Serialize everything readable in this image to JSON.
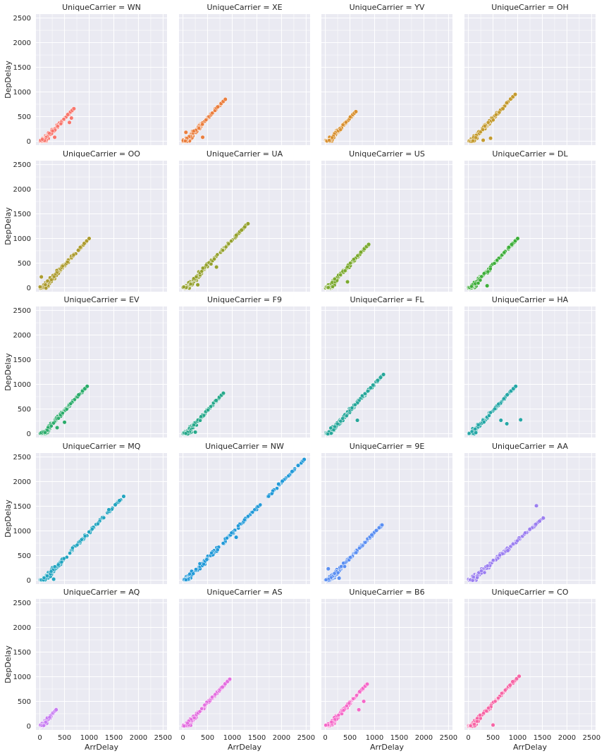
{
  "chart_data": {
    "type": "scatter",
    "x_label": "ArrDelay",
    "y_label": "DepDelay",
    "xlim": [
      -80,
      2580
    ],
    "ylim": [
      -80,
      2580
    ],
    "x_ticks": [
      0,
      500,
      1000,
      1500,
      2000,
      2500
    ],
    "y_ticks": [
      0,
      500,
      1000,
      1500,
      2000,
      2500
    ],
    "grid": true,
    "legend": "none",
    "facets": [
      {
        "title": "UniqueCarrier = WN",
        "color": "#f8766d",
        "max": [
          690,
          660
        ],
        "outliers": [
          [
            300,
            80
          ],
          [
            600,
            380
          ],
          [
            640,
            470
          ]
        ]
      },
      {
        "title": "UniqueCarrier = XE",
        "color": "#ea7e3e",
        "max": [
          860,
          850
        ],
        "outliers": [
          [
            60,
            180
          ],
          [
            400,
            80
          ]
        ]
      },
      {
        "title": "UniqueCarrier = YV",
        "color": "#d89030",
        "max": [
          620,
          600
        ],
        "outliers": []
      },
      {
        "title": "UniqueCarrier = OH",
        "color": "#c39a2f",
        "max": [
          950,
          950
        ],
        "outliers": [
          [
            700,
            660
          ],
          [
            300,
            20
          ],
          [
            450,
            60
          ]
        ]
      },
      {
        "title": "UniqueCarrier = OO",
        "color": "#ac9b2f",
        "max": [
          1000,
          1000
        ],
        "outliers": [
          [
            30,
            220
          ],
          [
            780,
            760
          ]
        ]
      },
      {
        "title": "UniqueCarrier = UA",
        "color": "#94a12f",
        "max": [
          1320,
          1300
        ],
        "outliers": [
          [
            680,
            420
          ],
          [
            300,
            60
          ]
        ]
      },
      {
        "title": "UniqueCarrier = US",
        "color": "#7aa92f",
        "max": [
          880,
          880
        ],
        "outliers": [
          [
            450,
            120
          ]
        ]
      },
      {
        "title": "UniqueCarrier = DL",
        "color": "#3dae3a",
        "max": [
          1000,
          1000
        ],
        "outliers": [
          [
            880,
            880
          ],
          [
            380,
            40
          ]
        ]
      },
      {
        "title": "UniqueCarrier = EV",
        "color": "#2bab6b",
        "max": [
          960,
          960
        ],
        "outliers": [
          [
            500,
            230
          ],
          [
            350,
            120
          ]
        ]
      },
      {
        "title": "UniqueCarrier = F9",
        "color": "#27a88b",
        "max": [
          820,
          820
        ],
        "outliers": [
          [
            250,
            30
          ]
        ]
      },
      {
        "title": "UniqueCarrier = FL",
        "color": "#26a69a",
        "max": [
          1180,
          1200
        ],
        "outliers": [
          [
            920,
            930
          ],
          [
            650,
            270
          ]
        ]
      },
      {
        "title": "UniqueCarrier = HA",
        "color": "#25a6a6",
        "max": [
          960,
          960
        ],
        "outliers": [
          [
            1060,
            280
          ],
          [
            660,
            270
          ],
          [
            780,
            200
          ],
          [
            150,
            20
          ]
        ]
      },
      {
        "title": "UniqueCarrier = MQ",
        "color": "#22a4c0",
        "max": [
          1700,
          1700
        ],
        "outliers": [
          [
            1400,
            1430
          ],
          [
            280,
            20
          ]
        ]
      },
      {
        "title": "UniqueCarrier = NW",
        "color": "#2299d8",
        "max": [
          2460,
          2450
        ],
        "outliers": [
          [
            1940,
            1950
          ],
          [
            1080,
            870
          ]
        ]
      },
      {
        "title": "UniqueCarrier = 9E",
        "color": "#5b8ff2",
        "max": [
          1150,
          1120
        ],
        "outliers": [
          [
            60,
            230
          ],
          [
            280,
            40
          ]
        ]
      },
      {
        "title": "UniqueCarrier = AA",
        "color": "#9b7ff0",
        "max": [
          1520,
          1260
        ],
        "outliers": [
          [
            1380,
            1510
          ],
          [
            800,
            600
          ]
        ]
      },
      {
        "title": "UniqueCarrier = AQ",
        "color": "#c77cf2",
        "max": [
          330,
          330
        ],
        "outliers": []
      },
      {
        "title": "UniqueCarrier = AS",
        "color": "#e36fe0",
        "max": [
          950,
          950
        ],
        "outliers": [
          [
            800,
            790
          ]
        ]
      },
      {
        "title": "UniqueCarrier = B6",
        "color": "#f569c9",
        "max": [
          850,
          850
        ],
        "outliers": [
          [
            680,
            330
          ],
          [
            780,
            500
          ]
        ]
      },
      {
        "title": "UniqueCarrier = CO",
        "color": "#f666a6",
        "max": [
          1030,
          1010
        ],
        "outliers": [
          [
            900,
            900
          ],
          [
            500,
            20
          ]
        ]
      }
    ]
  }
}
